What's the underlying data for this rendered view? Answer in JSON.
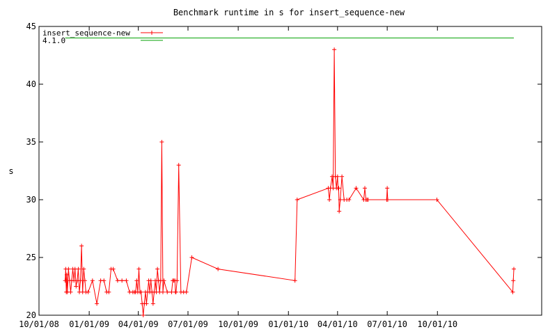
{
  "chart_data": {
    "type": "line",
    "title": "Benchmark runtime in s for insert_sequence-new",
    "xlabel": "",
    "ylabel": "s",
    "ylim": [
      20,
      45
    ],
    "xlim": [
      "2008-10-01",
      "2011-04-10"
    ],
    "grid": false,
    "legend_position": "top-left",
    "yticks": [
      20,
      25,
      30,
      35,
      40,
      45
    ],
    "xticks": [
      {
        "label": "10/01/08",
        "date": "2008-10-01"
      },
      {
        "label": "01/01/09",
        "date": "2009-01-01"
      },
      {
        "label": "04/01/09",
        "date": "2009-04-01"
      },
      {
        "label": "07/01/09",
        "date": "2009-07-01"
      },
      {
        "label": "10/01/09",
        "date": "2009-10-01"
      },
      {
        "label": "01/01/10",
        "date": "2010-01-01"
      },
      {
        "label": "04/01/10",
        "date": "2010-04-01"
      },
      {
        "label": "07/01/10",
        "date": "2010-07-01"
      },
      {
        "label": "10/01/10",
        "date": "2010-10-01"
      }
    ],
    "series": [
      {
        "name": "insert_sequence-new",
        "color": "#ff0000",
        "style": "line-with-plus-markers",
        "x": [
          "2008-11-18",
          "2008-11-19",
          "2008-11-20",
          "2008-11-21",
          "2008-11-22",
          "2008-11-24",
          "2008-11-26",
          "2008-11-28",
          "2008-11-30",
          "2008-12-02",
          "2008-12-04",
          "2008-12-06",
          "2008-12-08",
          "2008-12-10",
          "2008-12-12",
          "2008-12-14",
          "2008-12-16",
          "2008-12-18",
          "2008-12-20",
          "2008-12-22",
          "2008-12-24",
          "2008-12-26",
          "2008-12-30",
          "2009-01-07",
          "2009-01-15",
          "2009-01-22",
          "2009-01-28",
          "2009-02-02",
          "2009-02-06",
          "2009-02-10",
          "2009-02-14",
          "2009-02-22",
          "2009-03-02",
          "2009-03-10",
          "2009-03-16",
          "2009-03-22",
          "2009-03-25",
          "2009-03-27",
          "2009-03-29",
          "2009-03-31",
          "2009-04-02",
          "2009-04-04",
          "2009-04-06",
          "2009-04-08",
          "2009-04-10",
          "2009-04-12",
          "2009-04-14",
          "2009-04-16",
          "2009-04-18",
          "2009-04-20",
          "2009-04-22",
          "2009-04-24",
          "2009-04-26",
          "2009-04-28",
          "2009-04-30",
          "2009-05-02",
          "2009-05-04",
          "2009-05-06",
          "2009-05-08",
          "2009-05-10",
          "2009-05-12",
          "2009-05-14",
          "2009-05-16",
          "2009-05-18",
          "2009-05-24",
          "2009-06-01",
          "2009-06-03",
          "2009-06-05",
          "2009-06-07",
          "2009-06-08",
          "2009-06-09",
          "2009-06-11",
          "2009-06-14",
          "2009-06-18",
          "2009-06-23",
          "2009-06-28",
          "2009-07-08",
          "2009-08-25",
          "2010-01-13",
          "2010-01-17",
          "2010-03-15",
          "2010-03-17",
          "2010-03-19",
          "2010-03-22",
          "2010-03-24",
          "2010-03-26",
          "2010-03-28",
          "2010-03-30",
          "2010-04-01",
          "2010-04-02",
          "2010-04-03",
          "2010-04-04",
          "2010-04-06",
          "2010-04-09",
          "2010-04-13",
          "2010-04-18",
          "2010-04-22",
          "2010-05-05",
          "2010-05-19",
          "2010-05-21",
          "2010-05-23",
          "2010-05-25",
          "2010-05-27",
          "2010-06-30",
          "2010-07-01",
          "2010-07-02",
          "2010-09-30",
          "2011-02-16",
          "2011-02-17",
          "2011-02-18"
        ],
        "y": [
          23,
          24,
          22,
          23.5,
          22,
          24,
          23,
          22,
          23,
          24,
          23,
          24,
          22.5,
          23,
          24,
          22,
          23,
          26,
          22,
          24,
          23,
          22,
          22,
          23,
          21,
          23,
          23,
          22,
          22,
          24,
          24,
          23,
          23,
          23,
          22,
          22,
          22,
          22,
          23,
          22,
          24,
          22,
          22,
          21,
          20,
          21,
          22,
          21,
          22,
          23,
          22,
          23,
          22,
          21,
          22,
          23,
          22,
          24,
          23,
          22,
          23,
          35,
          22,
          23,
          22,
          22,
          23,
          23,
          23,
          22,
          22,
          23,
          33,
          22,
          22,
          22,
          25,
          24,
          23,
          30,
          31,
          30,
          31,
          32,
          31,
          43,
          32,
          31,
          32,
          31,
          31,
          29,
          30,
          32,
          30,
          30,
          30,
          31,
          30,
          31,
          30,
          30,
          30,
          30,
          31,
          30,
          30,
          22,
          23,
          24
        ]
      },
      {
        "name": "4.1.0",
        "color": "#00a000",
        "style": "line",
        "x": [
          "2008-11-18",
          "2011-02-18"
        ],
        "y": [
          44,
          44
        ]
      }
    ]
  }
}
